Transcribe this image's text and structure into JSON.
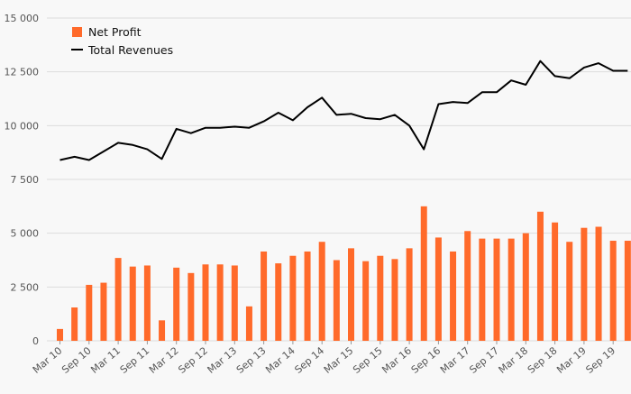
{
  "chart_data": {
    "type": "bar",
    "categories": [
      "Mar 10",
      "Sep 10",
      "Mar 11",
      "Sep 11",
      "Mar 12",
      "Sep 12",
      "Mar 13",
      "Sep 13",
      "Mar 14",
      "Sep 14",
      "Mar 15",
      "Sep 15",
      "Mar 16",
      "Sep 16",
      "Mar 17",
      "Sep 17",
      "Mar 18",
      "Sep 18",
      "Mar 19",
      "Sep 19"
    ],
    "x": [
      "Mar 10",
      "Jun 10",
      "Sep 10",
      "Dec 10",
      "Mar 11",
      "Jun 11",
      "Sep 11",
      "Dec 11",
      "Mar 12",
      "Jun 12",
      "Sep 12",
      "Dec 12",
      "Mar 13",
      "Jun 13",
      "Sep 13",
      "Dec 13",
      "Mar 14",
      "Jun 14",
      "Sep 14",
      "Dec 14",
      "Mar 15",
      "Jun 15",
      "Sep 15",
      "Dec 15",
      "Mar 16",
      "Jun 16",
      "Sep 16",
      "Dec 16",
      "Mar 17",
      "Jun 17",
      "Sep 17",
      "Dec 17",
      "Mar 18",
      "Jun 18",
      "Sep 18",
      "Dec 18",
      "Mar 19",
      "Jun 19",
      "Sep 19",
      "Dec 19"
    ],
    "series": [
      {
        "name": "Net Profit",
        "type": "bar",
        "color": "#ff6a2a",
        "values": [
          550,
          1550,
          2600,
          2700,
          3850,
          3450,
          3500,
          950,
          3400,
          3150,
          3550,
          3550,
          3500,
          1600,
          4150,
          3600,
          3950,
          4150,
          4600,
          3750,
          4300,
          3700,
          3950,
          3800,
          4300,
          6250,
          4800,
          4150,
          5100,
          4750,
          4750,
          4750,
          5000,
          6000,
          5500,
          4600,
          5250,
          5300,
          4650,
          4650
        ]
      },
      {
        "name": "Total Revenues",
        "type": "line",
        "color": "#000000",
        "values": [
          8400,
          8550,
          8400,
          8800,
          9200,
          9100,
          8900,
          8450,
          9850,
          9650,
          9900,
          9900,
          9950,
          9900,
          10200,
          10600,
          10250,
          10850,
          11300,
          10500,
          10550,
          10350,
          10300,
          10500,
          10000,
          8900,
          11000,
          11100,
          11050,
          11550,
          11550,
          12100,
          11900,
          13000,
          12300,
          12200,
          12700,
          12900,
          12550,
          12550
        ]
      }
    ],
    "ylim": [
      0,
      15000
    ],
    "yticks": [
      "0",
      "2 500",
      "5 000",
      "7 500",
      "10 000",
      "12 500",
      "15 000"
    ],
    "ytick_values": [
      0,
      2500,
      5000,
      7500,
      10000,
      12500,
      15000
    ],
    "legend": {
      "position": "top-left",
      "items": [
        "Net Profit",
        "Total Revenues"
      ]
    },
    "grid": "horizontal",
    "grid_color": "#dddddd",
    "axis_text_color": "#555555"
  }
}
